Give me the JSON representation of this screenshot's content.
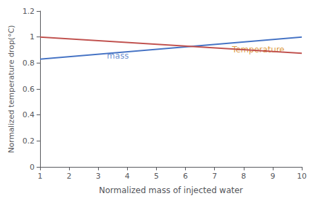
{
  "chart_data": {
    "type": "line",
    "xlabel": "Normalized mass of injected water",
    "ylabel": "Normalized temperature drop(°C)",
    "x": [
      1,
      10
    ],
    "series": [
      {
        "name": "mass",
        "color": "#4472C4",
        "values": [
          0.83,
          1.0
        ]
      },
      {
        "name": "Temperature",
        "color": "#C0504D",
        "values": [
          1.0,
          0.875
        ]
      }
    ],
    "annotations": [
      {
        "text": "mass",
        "x": 3.3,
        "y": 0.856,
        "color": "#4472C4"
      },
      {
        "text": "Temperature",
        "x": 7.6,
        "y": 0.905,
        "color": "#D4820A"
      }
    ],
    "xlim": [
      1,
      10
    ],
    "ylim": [
      0,
      1.2
    ],
    "xticks": [
      1,
      2,
      3,
      4,
      5,
      6,
      7,
      8,
      9,
      10
    ],
    "yticks": [
      0,
      0.2,
      0.4,
      0.6,
      0.8,
      1.0,
      1.2
    ],
    "grid": false
  }
}
